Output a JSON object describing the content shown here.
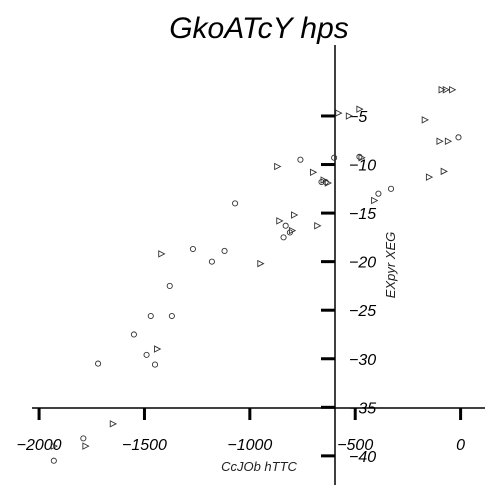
{
  "chart_data": {
    "type": "scatter",
    "title": "GkoATcY hps",
    "xlabel": "CcJOb hTTC",
    "ylabel": "EXpyr XEG",
    "xlim": [
      -2100,
      130
    ],
    "ylim": [
      -43,
      2
    ],
    "x_ticks": [
      -2000,
      -1500,
      -1000,
      -500,
      0
    ],
    "x_tick_labels": [
      "−2000",
      "−1500",
      "−1000",
      "−500",
      "0"
    ],
    "y_ticks": [
      -5,
      -10,
      -15,
      -20,
      -25,
      -30,
      -35,
      -40
    ],
    "y_tick_labels": [
      "−5",
      "−10",
      "−15",
      "−20",
      "−25",
      "−30",
      "−35",
      "−40"
    ],
    "grid": false,
    "legend": false,
    "series": [
      {
        "marker": "circle",
        "color": "#333333",
        "x": [
          -1930,
          -1790,
          -1720,
          -1550,
          -1490,
          -1470,
          -1450,
          -1380,
          -1370,
          -1270,
          -1180,
          -1120,
          -1070,
          -840,
          -830,
          -810,
          -760,
          -660,
          -640,
          -600,
          -480,
          -390,
          -330,
          -10
        ],
        "y": [
          -40.5,
          -38.2,
          -30.5,
          -27.5,
          -29.6,
          -25.6,
          -30.6,
          -22.5,
          -25.6,
          -18.7,
          -20.0,
          -18.9,
          -14.0,
          -17.5,
          -16.3,
          -17.0,
          -9.5,
          -11.8,
          -11.8,
          -9.3,
          -9.2,
          -13.0,
          -12.5,
          -7.2
        ]
      },
      {
        "marker": "triangle-right",
        "color": "#333333",
        "x": [
          -1930,
          -1780,
          -1650,
          -1440,
          -1420,
          -950,
          -870,
          -860,
          -800,
          -790,
          -700,
          -680,
          -650,
          -630,
          -580,
          -530,
          -480,
          -470,
          -410,
          -170,
          -150,
          -100,
          -90,
          -80,
          -70,
          -60,
          -40
        ],
        "y": [
          -39.0,
          -39.0,
          -36.7,
          -29.0,
          -19.2,
          -20.2,
          -10.2,
          -15.8,
          -16.8,
          -15.2,
          -10.8,
          -16.3,
          -11.6,
          -11.9,
          -4.7,
          -5.0,
          -4.3,
          -9.3,
          -13.7,
          -5.4,
          -11.3,
          -7.6,
          -2.3,
          -10.7,
          -2.3,
          -7.6,
          -2.3
        ]
      }
    ]
  }
}
